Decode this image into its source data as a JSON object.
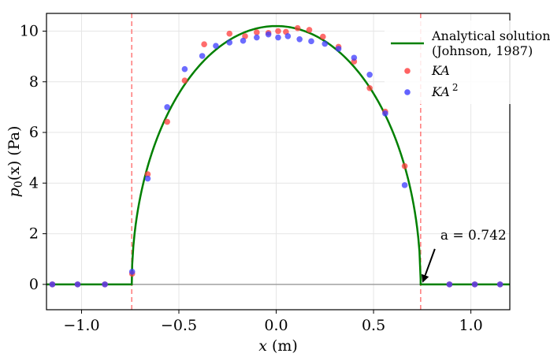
{
  "chart_data": {
    "type": "scatter",
    "xlabel_var": "x",
    "xlabel_unit": "(m)",
    "ylabel_var": "p",
    "ylabel_sub": "0",
    "ylabel_arg": "(x)",
    "ylabel_unit": "(Pa)",
    "xlim": [
      -1.18,
      1.2
    ],
    "ylim": [
      -1.0,
      10.7
    ],
    "xticks": [
      -1.0,
      -0.5,
      0.0,
      0.5,
      1.0
    ],
    "xtick_labels": [
      "−1.0",
      "−0.5",
      "0.0",
      "0.5",
      "1.0"
    ],
    "yticks": [
      0,
      2,
      4,
      6,
      8,
      10
    ],
    "ytick_labels": [
      "0",
      "2",
      "4",
      "6",
      "8",
      "10"
    ],
    "grid": true,
    "legend_position": "top-right",
    "contact_half_width": 0.742,
    "peak_pressure": 10.2,
    "annotation": {
      "text": "a = 0.742",
      "x": 0.742,
      "y": 0
    },
    "colors": {
      "analytical": "#008000",
      "ka": "#ff3b3b",
      "ka2": "#3b3bff",
      "boundary": "#ff8080",
      "zero_line": "#a0a0a0"
    },
    "series": [
      {
        "name": "Analytical solution",
        "name_line2": " (Johnson, 1987)",
        "kind": "line"
      },
      {
        "name": "KA",
        "kind": "scatter",
        "points": [
          [
            -1.15,
            0.0
          ],
          [
            -1.02,
            0.0
          ],
          [
            -0.88,
            0.0
          ],
          [
            -0.74,
            0.42
          ],
          [
            -0.66,
            4.35
          ],
          [
            -0.56,
            6.42
          ],
          [
            -0.47,
            8.05
          ],
          [
            -0.37,
            9.48
          ],
          [
            -0.24,
            9.9
          ],
          [
            -0.16,
            9.8
          ],
          [
            -0.1,
            9.95
          ],
          [
            -0.04,
            9.93
          ],
          [
            0.01,
            10.0
          ],
          [
            0.05,
            9.97
          ],
          [
            0.11,
            10.12
          ],
          [
            0.17,
            10.05
          ],
          [
            0.24,
            9.78
          ],
          [
            0.32,
            9.38
          ],
          [
            0.4,
            8.8
          ],
          [
            0.48,
            7.75
          ],
          [
            0.56,
            6.82
          ],
          [
            0.66,
            4.67
          ],
          [
            0.89,
            0.0
          ],
          [
            1.02,
            0.0
          ],
          [
            1.15,
            0.0
          ]
        ]
      },
      {
        "name": "KA",
        "name_sup": "2",
        "kind": "scatter",
        "points": [
          [
            -1.15,
            0.0
          ],
          [
            -1.02,
            0.0
          ],
          [
            -0.88,
            0.0
          ],
          [
            -0.74,
            0.5
          ],
          [
            -0.66,
            4.18
          ],
          [
            -0.56,
            7.0
          ],
          [
            -0.47,
            8.5
          ],
          [
            -0.38,
            9.02
          ],
          [
            -0.31,
            9.42
          ],
          [
            -0.24,
            9.55
          ],
          [
            -0.17,
            9.62
          ],
          [
            -0.1,
            9.75
          ],
          [
            -0.04,
            9.87
          ],
          [
            0.01,
            9.75
          ],
          [
            0.06,
            9.8
          ],
          [
            0.12,
            9.68
          ],
          [
            0.18,
            9.6
          ],
          [
            0.25,
            9.5
          ],
          [
            0.32,
            9.3
          ],
          [
            0.4,
            8.95
          ],
          [
            0.48,
            8.28
          ],
          [
            0.56,
            6.75
          ],
          [
            0.66,
            3.92
          ],
          [
            0.89,
            0.0
          ],
          [
            1.02,
            0.0
          ],
          [
            1.15,
            0.0
          ]
        ]
      }
    ]
  }
}
